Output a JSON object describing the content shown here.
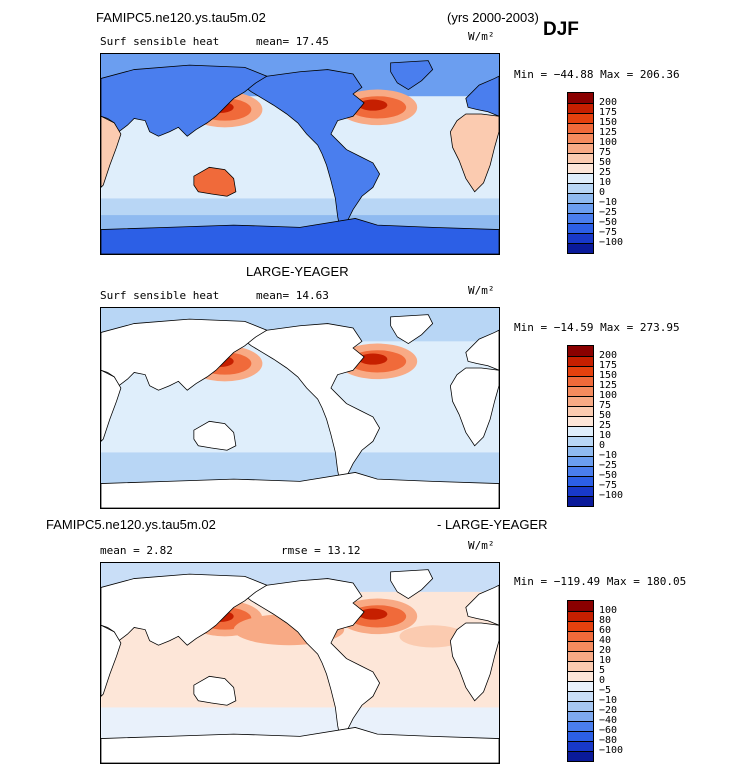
{
  "header": {
    "case_name": "FAMIPC5.ne120.ys.tau5m.02",
    "years": "(yrs 2000-2003)",
    "season": "DJF"
  },
  "panels": [
    {
      "title": "",
      "left_label": "Surf sensible heat",
      "mid_label": "mean=  17.45",
      "units": "W/m²",
      "minmax": "Min = −44.88 Max = 206.36",
      "legend_levels": [
        "200",
        "175",
        "150",
        "125",
        "100",
        "75",
        "50",
        "25",
        "10",
        "0",
        "−10",
        "−25",
        "−50",
        "−75",
        "−100"
      ],
      "legend_colors": [
        "#8a0000",
        "#c61f00",
        "#e5410e",
        "#f06a3a",
        "#f58b5e",
        "#f8aa85",
        "#fbcbb0",
        "#fde6d8",
        "#dfeefb",
        "#b8d6f5",
        "#8fbaf0",
        "#6b9ef0",
        "#4a7eee",
        "#2c5fe6",
        "#1839c9",
        "#0a1a9a"
      ],
      "fill_mode": "full"
    },
    {
      "title": "LARGE-YEAGER",
      "left_label": "Surf sensible heat",
      "mid_label": "mean=  14.63",
      "units": "W/m²",
      "minmax": "Min = −14.59 Max = 273.95",
      "legend_levels": [
        "200",
        "175",
        "150",
        "125",
        "100",
        "75",
        "50",
        "25",
        "10",
        "0",
        "−10",
        "−25",
        "−50",
        "−75",
        "−100"
      ],
      "legend_colors": [
        "#8a0000",
        "#c61f00",
        "#e5410e",
        "#f06a3a",
        "#f58b5e",
        "#f8aa85",
        "#fbcbb0",
        "#fde6d8",
        "#dfeefb",
        "#b8d6f5",
        "#8fbaf0",
        "#6b9ef0",
        "#4a7eee",
        "#2c5fe6",
        "#1839c9",
        "#0a1a9a"
      ],
      "fill_mode": "ocean"
    },
    {
      "title": "FAMIPC5.ne120.ys.tau5m.02",
      "title_suffix": "- LARGE-YEAGER",
      "left_label": "mean =   2.82",
      "mid_label": "rmse =   13.12",
      "units": "W/m²",
      "minmax": "Min = −119.49 Max = 180.05",
      "legend_levels": [
        "100",
        "80",
        "60",
        "40",
        "20",
        "10",
        "5",
        "0",
        "−5",
        "−10",
        "−20",
        "−40",
        "−60",
        "−80",
        "−100"
      ],
      "legend_colors": [
        "#8a0000",
        "#c61f00",
        "#e5410e",
        "#f06a3a",
        "#f58b5e",
        "#f8aa85",
        "#fbcbb0",
        "#fde6d8",
        "#e9f1fb",
        "#c9def7",
        "#a6c7f2",
        "#7ea9ef",
        "#4a7eee",
        "#2c5fe6",
        "#1839c9",
        "#0a1a9a"
      ],
      "fill_mode": "ocean"
    }
  ]
}
